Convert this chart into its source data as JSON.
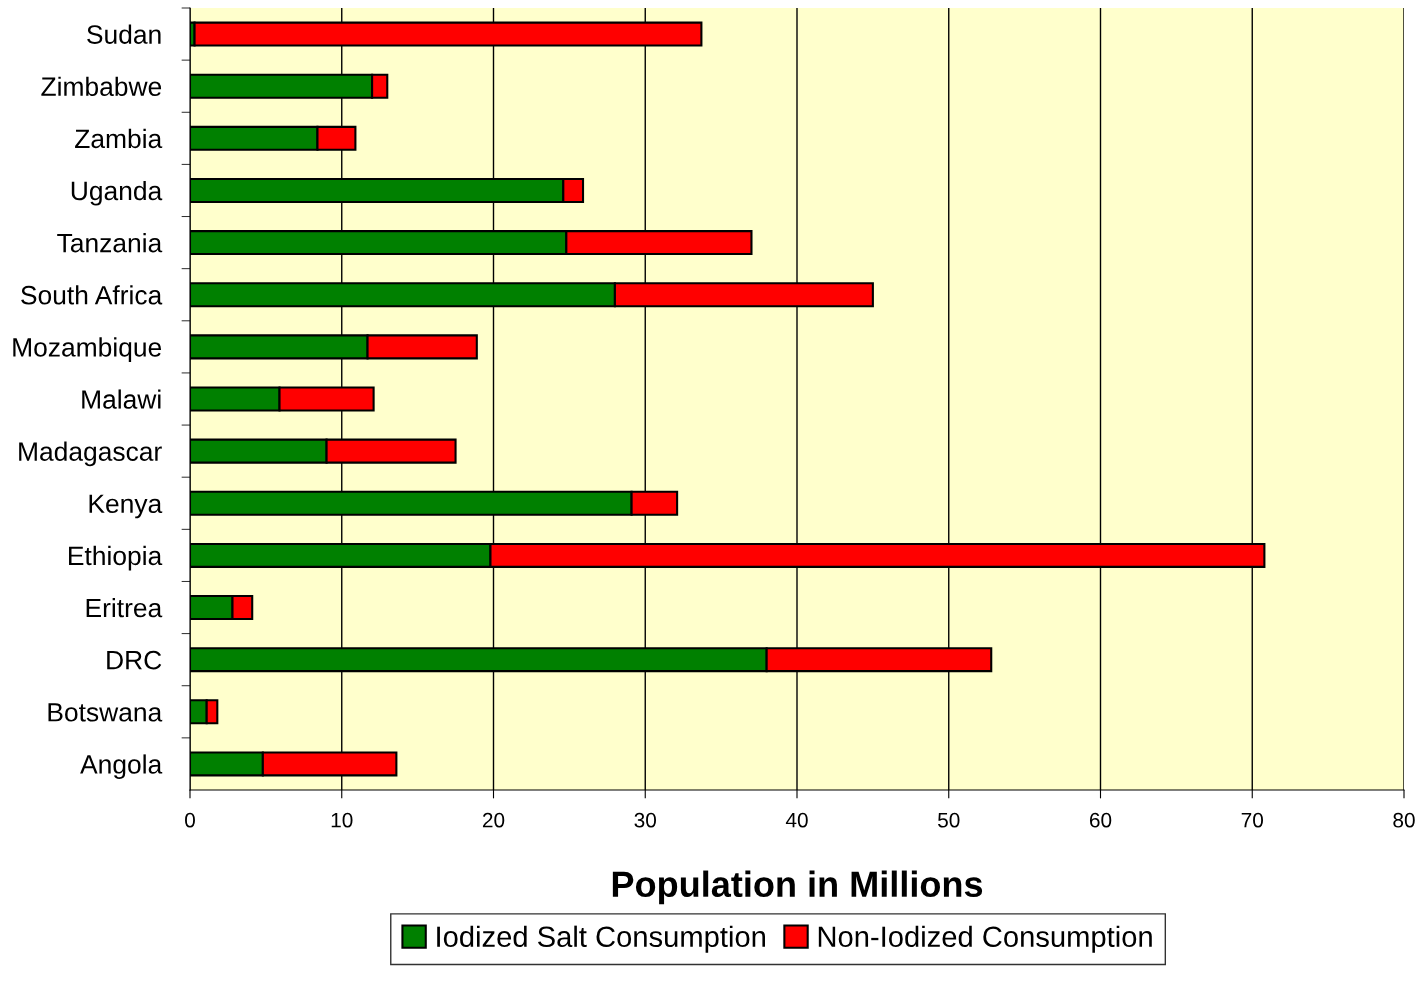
{
  "chart_data": {
    "type": "bar",
    "orientation": "horizontal",
    "stacked": true,
    "xlabel": "Population in Millions",
    "categories": [
      "Sudan",
      "Zimbabwe",
      "Zambia",
      "Uganda",
      "Tanzania",
      "South Africa",
      "Mozambique",
      "Malawi",
      "Madagascar",
      "Kenya",
      "Ethiopia",
      "Eritrea",
      "DRC",
      "Botswana",
      "Angola"
    ],
    "series": [
      {
        "name": "Iodized Salt Consumption",
        "color": "#008000",
        "values": [
          0.3,
          12.0,
          8.4,
          24.6,
          24.8,
          28.0,
          11.7,
          5.9,
          9.0,
          29.1,
          19.8,
          2.8,
          38.0,
          1.1,
          4.8
        ]
      },
      {
        "name": "Non-Iodized Consumption",
        "color": "#ff0000",
        "values": [
          33.4,
          1.0,
          2.5,
          1.3,
          12.2,
          17.0,
          7.2,
          6.2,
          8.5,
          3.0,
          51.0,
          1.3,
          14.8,
          0.7,
          8.8
        ]
      }
    ],
    "xlim": [
      0,
      80
    ],
    "xticks": [
      0,
      10,
      20,
      30,
      40,
      50,
      60,
      70,
      80
    ],
    "grid": "x",
    "legend": "bottom"
  }
}
